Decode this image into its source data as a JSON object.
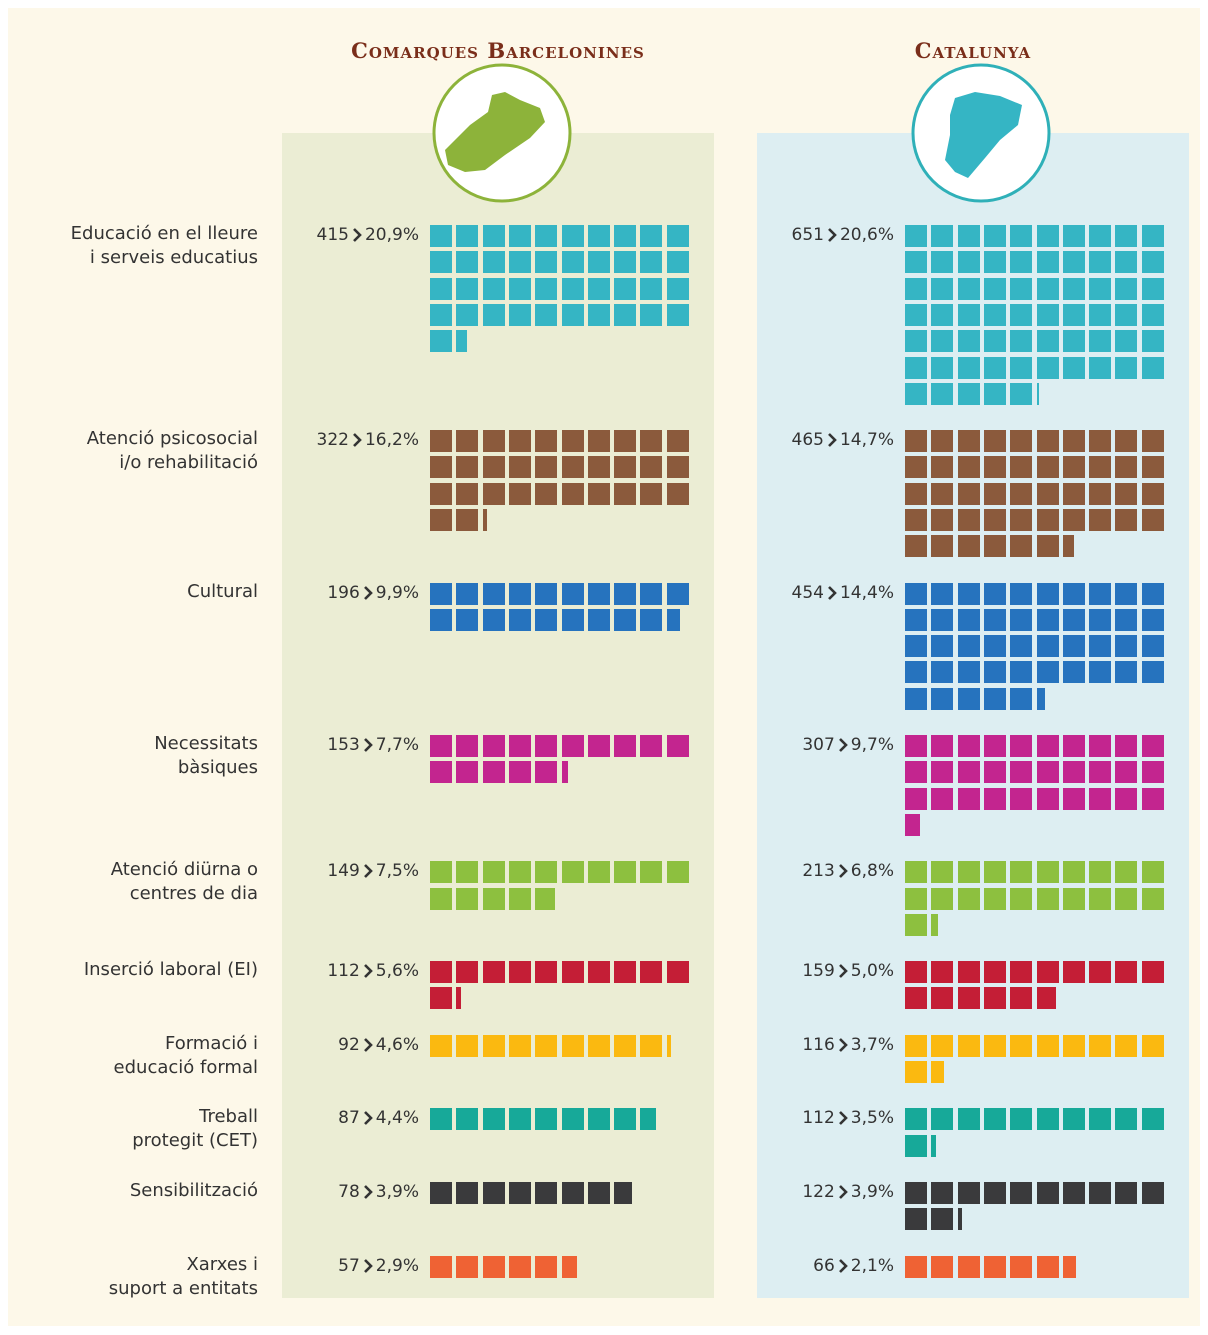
{
  "chart_data": {
    "type": "waffle",
    "unit": 10,
    "categories": [
      "Educació en el lleure\ni serveis educatius",
      "Atenció psicosocial\ni/o rehabilitació",
      "Cultural",
      "Necessitats\nbàsiques",
      "Atenció diürna o\ncentres de dia",
      "Inserció laboral (EI)",
      "Formació i\neducació formal",
      "Treball\nprotegit (CET)",
      "Sensibilització",
      "Xarxes i\nsuport a entitats"
    ],
    "colors": [
      "#35b5c4",
      "#8b5a3c",
      "#2673be",
      "#c3258f",
      "#8dc03f",
      "#c41e36",
      "#fbb910",
      "#17a999",
      "#3a3a3c",
      "#ef6234"
    ],
    "series": [
      {
        "name": "Comarques Barcelonines",
        "color": "#8db33a",
        "background": "#ebedd4",
        "values": [
          415,
          322,
          196,
          153,
          149,
          112,
          92,
          87,
          78,
          57
        ],
        "shares": [
          20.9,
          16.2,
          9.9,
          7.7,
          7.5,
          5.6,
          4.6,
          4.4,
          3.9,
          2.9
        ],
        "share_labels": [
          "20,9%",
          "16,2%",
          "9,9%",
          "7,7%",
          "7,5%",
          "5,6%",
          "4,6%",
          "4,4%",
          "3,9%",
          "2,9%"
        ]
      },
      {
        "name": "Catalunya",
        "color": "#2fb0b8",
        "background": "#ddeef2",
        "values": [
          651,
          465,
          454,
          307,
          213,
          159,
          116,
          112,
          122,
          66
        ],
        "shares": [
          20.6,
          14.7,
          14.4,
          9.7,
          6.8,
          5.0,
          3.7,
          3.5,
          3.9,
          2.1
        ],
        "share_labels": [
          "20,6%",
          "14,7%",
          "14,4%",
          "9,7%",
          "6,8%",
          "5,0%",
          "3,7%",
          "3,5%",
          "3,9%",
          "2,1%"
        ]
      }
    ]
  }
}
